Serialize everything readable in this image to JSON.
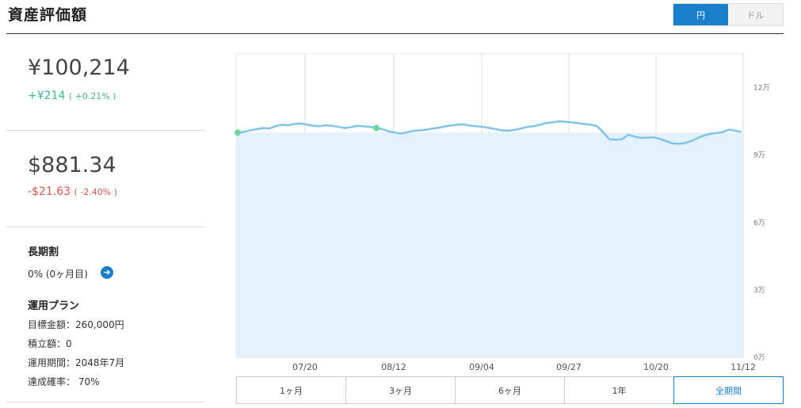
{
  "header": {
    "title": "資産評価額"
  },
  "currency_toggle": {
    "options": [
      "円",
      "ドル"
    ],
    "selected": "円"
  },
  "jpy": {
    "value": "¥100,214",
    "change": "+¥214",
    "change_pct": "( +0.21% )"
  },
  "usd": {
    "value": "$881.34",
    "change": "-$21.63",
    "change_pct": "( -2.40% )"
  },
  "long_term": {
    "label": "長期割",
    "value": "0% (0ヶ月目)"
  },
  "plan": {
    "label": "運用プラン",
    "target": "目標金額：260,000円",
    "monthly": "積立額：0",
    "period": "運用期間：2048年7月",
    "probability": "達成確率： 70%"
  },
  "range_buttons": [
    "1ヶ月",
    "3ヶ月",
    "6ヶ月",
    "1年",
    "全期間"
  ],
  "range_selected": "全期間",
  "chart_data": {
    "type": "line",
    "x_tick_labels": [
      "07/20",
      "08/12",
      "09/04",
      "09/27",
      "10/20",
      "11/12"
    ],
    "y_tick_labels": [
      "0万",
      "3万",
      "6万",
      "9万",
      "12万"
    ],
    "ylim": [
      0,
      135000
    ],
    "baseline": 100000,
    "series": [
      {
        "values": [
          100000,
          100300,
          101000,
          101500,
          102000,
          101800,
          102800,
          103500,
          103200,
          103800,
          104000,
          103500,
          103000,
          102800,
          103200,
          103000,
          102500,
          102000,
          102400,
          103000,
          102800,
          102500,
          102000,
          101500,
          100500,
          100000,
          99500,
          100200,
          100800,
          101000,
          101300,
          101800,
          102200,
          102800,
          103200,
          103500,
          103600,
          103000,
          102800,
          102500,
          102000,
          101500,
          101000,
          100800,
          101200,
          101800,
          102500,
          102800,
          103500,
          104200,
          104500,
          105000,
          104800,
          104500,
          104200,
          103800,
          103500,
          103000,
          100200,
          97000,
          96800,
          97000,
          99000,
          98200,
          97600,
          97700,
          97900,
          97200,
          96200,
          95200,
          95000,
          95300,
          96200,
          97500,
          98700,
          99400,
          99800,
          100200,
          101300,
          100800,
          100200
        ]
      }
    ]
  },
  "colors": {
    "accent": "#1a7fcb",
    "line": "#7fc4ea",
    "fill": "#e4f1fa",
    "marker": "#6dd4a4"
  }
}
